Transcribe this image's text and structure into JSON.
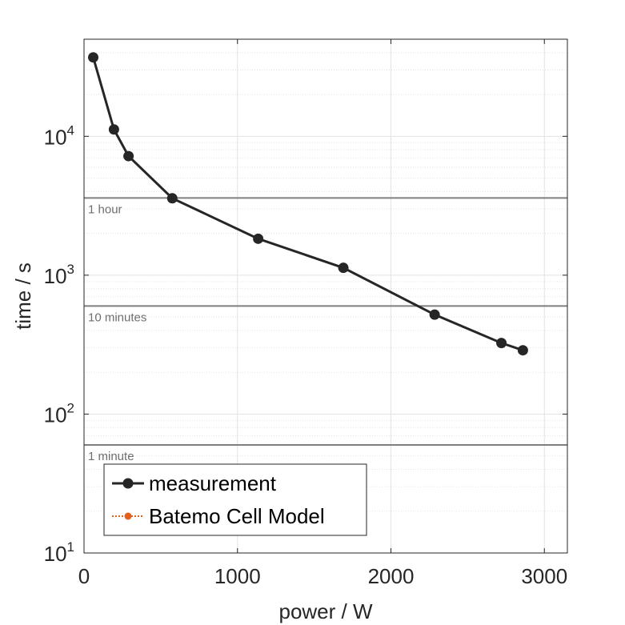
{
  "chart_data": {
    "type": "line",
    "title": "",
    "xlabel": "power / W",
    "ylabel": "time / s",
    "xlim": [
      0,
      3150
    ],
    "ylim": [
      10,
      50000
    ],
    "yscale": "log",
    "grid": true,
    "x_ticks": [
      {
        "value": 0,
        "label": "0"
      },
      {
        "value": 1000,
        "label": "1000"
      },
      {
        "value": 2000,
        "label": "2000"
      },
      {
        "value": 3000,
        "label": "3000"
      }
    ],
    "y_ticks": [
      {
        "value": 10,
        "base": "10",
        "exp": "1"
      },
      {
        "value": 100,
        "base": "10",
        "exp": "2"
      },
      {
        "value": 1000,
        "base": "10",
        "exp": "3"
      },
      {
        "value": 10000,
        "base": "10",
        "exp": "4"
      }
    ],
    "series": [
      {
        "name": "measurement",
        "color": "#262626",
        "marker": "circle",
        "x": [
          60,
          195,
          290,
          575,
          1135,
          1690,
          2285,
          2720,
          2860
        ],
        "y": [
          37000,
          11200,
          7200,
          3580,
          1830,
          1130,
          520,
          325,
          288
        ]
      },
      {
        "name": "Batemo Cell Model",
        "color": "#e0601c",
        "marker": "circle",
        "linestyle": "dotted",
        "x": [],
        "y": []
      }
    ],
    "reference_lines": [
      {
        "value": 3600,
        "label": "1 hour"
      },
      {
        "value": 600,
        "label": "10 minutes"
      },
      {
        "value": 60,
        "label": "1 minute"
      }
    ],
    "legend": {
      "placement": "bottom-left"
    }
  },
  "colors": {
    "line": "#262626",
    "reference": "#7f7f7f",
    "grid": "#e3e3e3",
    "model": "#e0601c"
  }
}
